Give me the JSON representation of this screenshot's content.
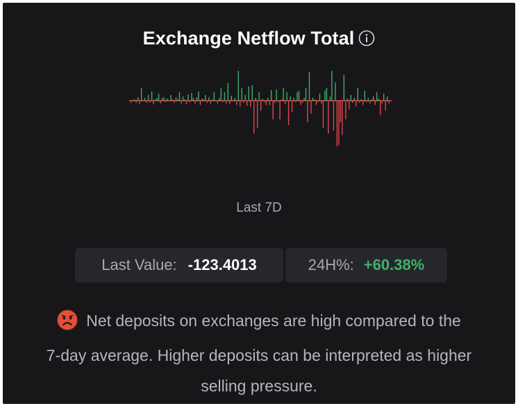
{
  "widget": {
    "title": "Exchange Netflow Total",
    "period_label": "Last 7D",
    "last_value_label": "Last Value:",
    "last_value": "-123.4013",
    "change_label": "24H%:",
    "change_value": "+60.38%",
    "message_lines": [
      "Net deposits on exchanges are high compared to the",
      "7-day average. Higher deposits can be interpreted as higher",
      "selling pressure."
    ]
  },
  "colors": {
    "background": "#17171a",
    "positive": "#3fb26a",
    "negative": "#e5484d",
    "stat_box": "#26272c"
  },
  "icons": {
    "info": "info-circle-icon",
    "sentiment": "frowning-face-icon"
  },
  "chart_data": {
    "type": "bar",
    "ylim": [
      -70,
      45
    ],
    "values": [
      -3,
      0,
      2,
      -3,
      5,
      -5,
      18,
      0,
      4,
      -3,
      8,
      -3,
      13,
      -5,
      2,
      4,
      10,
      -4,
      4,
      5,
      -2,
      3,
      -1,
      8,
      2,
      -3,
      5,
      2,
      12,
      -4,
      6,
      2,
      -5,
      9,
      -2,
      11,
      4,
      -4,
      5,
      13,
      -6,
      3,
      2,
      8,
      -3,
      5,
      -4,
      2,
      12,
      0,
      -4,
      4,
      18,
      -2,
      12,
      -4,
      25,
      -5,
      7,
      1,
      4,
      -6,
      42,
      -8,
      18,
      -3,
      8,
      -7,
      20,
      -9,
      22,
      -46,
      4,
      -38,
      12,
      -14,
      3,
      -2,
      -6,
      4,
      -6,
      15,
      -26,
      -3,
      16,
      -2,
      -26,
      2,
      18,
      -5,
      12,
      -34,
      6,
      -16,
      4,
      -2,
      12,
      14,
      -6,
      -3,
      4,
      18,
      -30,
      40,
      -18,
      4,
      2,
      -6,
      -2,
      10,
      -4,
      -38,
      14,
      18,
      -46,
      6,
      42,
      -42,
      26,
      -64,
      -62,
      -30,
      -48,
      36,
      -26,
      3,
      -12,
      8,
      -3,
      4,
      -8,
      18,
      -3,
      2,
      -6,
      14,
      -2,
      4,
      -4,
      2,
      6,
      -6,
      12,
      3,
      -20,
      -4,
      10,
      -14,
      6,
      -4
    ]
  }
}
